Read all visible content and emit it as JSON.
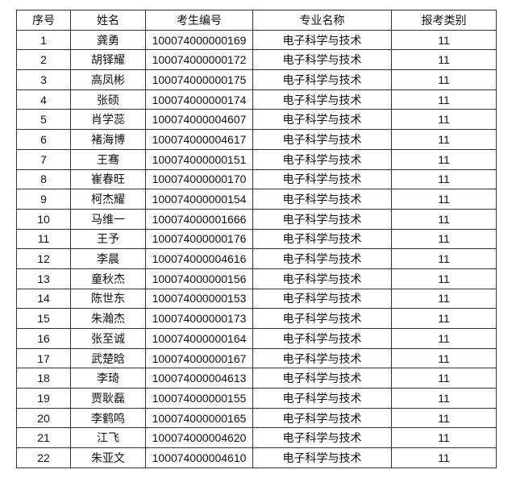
{
  "headers": [
    "序号",
    "姓名",
    "考生编号",
    "专业名称",
    "报考类别"
  ],
  "rows": [
    [
      "1",
      "龚勇",
      "100074000000169",
      "电子科学与技术",
      "11"
    ],
    [
      "2",
      "胡铎耀",
      "100074000000172",
      "电子科学与技术",
      "11"
    ],
    [
      "3",
      "高凤彬",
      "100074000000175",
      "电子科学与技术",
      "11"
    ],
    [
      "4",
      "张硕",
      "100074000000174",
      "电子科学与技术",
      "11"
    ],
    [
      "5",
      "肖学蕊",
      "100074000004607",
      "电子科学与技术",
      "11"
    ],
    [
      "6",
      "褚海博",
      "100074000004617",
      "电子科学与技术",
      "11"
    ],
    [
      "7",
      "王骞",
      "100074000000151",
      "电子科学与技术",
      "11"
    ],
    [
      "8",
      "崔春旺",
      "100074000000170",
      "电子科学与技术",
      "11"
    ],
    [
      "9",
      "柯杰耀",
      "100074000000154",
      "电子科学与技术",
      "11"
    ],
    [
      "10",
      "马维一",
      "100074000001666",
      "电子科学与技术",
      "11"
    ],
    [
      "11",
      "王予",
      "100074000000176",
      "电子科学与技术",
      "11"
    ],
    [
      "12",
      "李晨",
      "100074000004616",
      "电子科学与技术",
      "11"
    ],
    [
      "13",
      "童秋杰",
      "100074000000156",
      "电子科学与技术",
      "11"
    ],
    [
      "14",
      "陈世东",
      "100074000000153",
      "电子科学与技术",
      "11"
    ],
    [
      "15",
      "朱瀚杰",
      "100074000000173",
      "电子科学与技术",
      "11"
    ],
    [
      "16",
      "张至诚",
      "100074000000164",
      "电子科学与技术",
      "11"
    ],
    [
      "17",
      "武楚晗",
      "100074000000167",
      "电子科学与技术",
      "11"
    ],
    [
      "18",
      "李琦",
      "100074000004613",
      "电子科学与技术",
      "11"
    ],
    [
      "19",
      "贾耿磊",
      "100074000000155",
      "电子科学与技术",
      "11"
    ],
    [
      "20",
      "李鹤鸣",
      "100074000000165",
      "电子科学与技术",
      "11"
    ],
    [
      "21",
      "江飞",
      "100074000004620",
      "电子科学与技术",
      "11"
    ],
    [
      "22",
      "朱亚文",
      "100074000004610",
      "电子科学与技术",
      "11"
    ]
  ]
}
